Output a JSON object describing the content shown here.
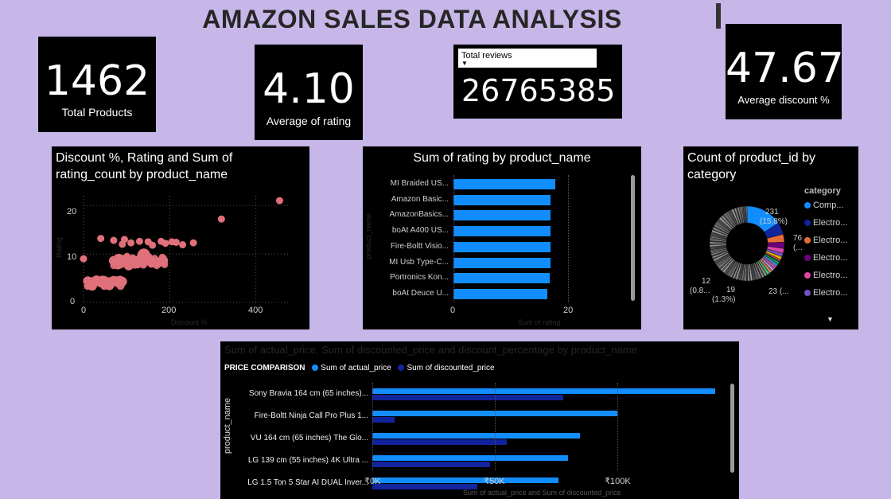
{
  "title": "AMAZON SALES DATA ANALYSIS",
  "kpis": {
    "total_products": {
      "value": "1462",
      "label": "Total Products"
    },
    "avg_rating": {
      "value": "4.10",
      "label": "Average of rating"
    },
    "total_reviews": {
      "dropdown": "Total reviews",
      "value": "26765385"
    },
    "avg_discount": {
      "value": "47.67",
      "label": "Average discount %"
    }
  },
  "scatter": {
    "title": "Discount %, Rating and Sum of rating_count by product_name",
    "title_line1": "Discount %, Rating and Sum of",
    "title_line2": "rating_count by product_name",
    "xlabel": "Discount %",
    "ylabel": "Rating",
    "xticks": [
      "0",
      "200",
      "400"
    ],
    "yticks": [
      "20",
      "10",
      "0"
    ],
    "color": "#e0707a"
  },
  "rating_bars": {
    "title": "Sum of rating by product_name",
    "ylabel": "product_name",
    "xlabel": "Sum of rating",
    "xticks": [
      "0",
      "20"
    ],
    "color": "#118dff"
  },
  "donut": {
    "title_line1": "Count of product_id by",
    "title_line2": "category",
    "legend_title": "category",
    "legend": [
      {
        "label": "Comp...",
        "color": "#118dff"
      },
      {
        "label": "Electro...",
        "color": "#12239e"
      },
      {
        "label": "Electro...",
        "color": "#e66c37"
      },
      {
        "label": "Electro...",
        "color": "#6b007b"
      },
      {
        "label": "Electro...",
        "color": "#e044a7"
      },
      {
        "label": "Electro...",
        "color": "#744ec2"
      }
    ],
    "labels": {
      "l231a": "231",
      "l231b": "(15.8%)",
      "l76a": "76",
      "l76b": "(...",
      "l12a": "12",
      "l12b": "(0.8...",
      "l19a": "19",
      "l19b": "(1.3%)",
      "l23": "23 (..."
    },
    "more_icon": "chevron-down-icon"
  },
  "price": {
    "title": "Sum of actual_price, Sum of discounted_price and discount_percentage by product_name",
    "legend_title": "PRICE COMPARISON",
    "series_actual": "Sum of actual_price",
    "series_discounted": "Sum of discounted_price",
    "ylabel": "product_name",
    "xlabel": "Sum of actual_price and Sum of discounted_price",
    "xticks": [
      "₹0K",
      "₹50K",
      "₹100K"
    ],
    "colors": {
      "actual": "#118dff",
      "discounted": "#12239e"
    }
  },
  "chart_data": [
    {
      "type": "scatter",
      "title": "Discount %, Rating and Sum of rating_count by product_name",
      "xlabel": "Discount %",
      "ylabel": "Rating",
      "xlim": [
        0,
        480
      ],
      "ylim": [
        0,
        22
      ],
      "points": [
        [
          0,
          9
        ],
        [
          40,
          13.2
        ],
        [
          70,
          12.8
        ],
        [
          90,
          12
        ],
        [
          95,
          13
        ],
        [
          110,
          12.3
        ],
        [
          130,
          12.6
        ],
        [
          150,
          12.5
        ],
        [
          160,
          11.8
        ],
        [
          180,
          12.6
        ],
        [
          190,
          12.2
        ],
        [
          205,
          12.5
        ],
        [
          215,
          12.4
        ],
        [
          230,
          11.9
        ],
        [
          255,
          12.3
        ],
        [
          320,
          17.2
        ],
        [
          455,
          21
        ],
        [
          70,
          8.6
        ],
        [
          80,
          9
        ],
        [
          90,
          8.8
        ],
        [
          100,
          9
        ],
        [
          110,
          8.4
        ],
        [
          120,
          8.6
        ],
        [
          135,
          9.6
        ],
        [
          140,
          8.8
        ],
        [
          150,
          8.6
        ],
        [
          160,
          8.2
        ],
        [
          175,
          8.3
        ],
        [
          185,
          8.6
        ],
        [
          105,
          7.6
        ],
        [
          125,
          8
        ],
        [
          80,
          7.8
        ],
        [
          10,
          4.4
        ],
        [
          20,
          4.2
        ],
        [
          30,
          4.6
        ],
        [
          40,
          4.1
        ],
        [
          50,
          4.4
        ],
        [
          60,
          4.2
        ],
        [
          70,
          4.5
        ],
        [
          80,
          4.1
        ],
        [
          90,
          4.3
        ],
        [
          20,
          3.4
        ],
        [
          60,
          3.5
        ]
      ]
    },
    {
      "type": "bar",
      "title": "Sum of rating by product_name",
      "orientation": "horizontal",
      "categories": [
        "MI Braided US...",
        "Amazon Basic...",
        "AmazonBasics...",
        "boAt A400 US...",
        "Fire-Boltt Visio...",
        "MI Usb Type-C...",
        "Portronics Kon...",
        "boAt Deuce U..."
      ],
      "values": [
        13.3,
        12.7,
        12.7,
        12.7,
        12.7,
        12.7,
        12.6,
        12.3
      ],
      "xlabel": "Sum of rating",
      "ylabel": "product_name",
      "xlim": [
        0,
        30
      ]
    },
    {
      "type": "pie",
      "title": "Count of product_id by category",
      "total": 1462,
      "slices": [
        {
          "label": "Comp...",
          "value": 231
        },
        {
          "label": "Electro...",
          "value": 76
        },
        {
          "label": "Electro...",
          "value": 50
        },
        {
          "label": "Electro...",
          "value": 40
        },
        {
          "label": "Electro...",
          "value": 30
        },
        {
          "label": "Electro...",
          "value": 23
        },
        {
          "label": "Electro...",
          "value": 19
        },
        {
          "label": "Electro...",
          "value": 12
        }
      ]
    },
    {
      "type": "bar",
      "title": "Sum of actual_price, Sum of discounted_price and discount_percentage by product_name",
      "orientation": "horizontal",
      "categories": [
        "Sony Bravia 164 cm (65 inches)...",
        "Fire-Boltt Ninja Call Pro Plus 1...",
        "VU 164 cm (65 inches) The Glo...",
        "LG 139 cm (55 inches) 4K Ultra ...",
        "LG 1.5 Ton 5 Star AI DUAL Inver..."
      ],
      "series": [
        {
          "name": "Sum of actual_price",
          "values": [
            140000,
            100000,
            85000,
            80000,
            76000
          ]
        },
        {
          "name": "Sum of discounted_price",
          "values": [
            78000,
            9000,
            55000,
            48000,
            43000
          ]
        }
      ],
      "xlabel": "Sum of actual_price and Sum of discounted_price",
      "ylabel": "product_name",
      "xlim": [
        0,
        145000
      ]
    }
  ]
}
